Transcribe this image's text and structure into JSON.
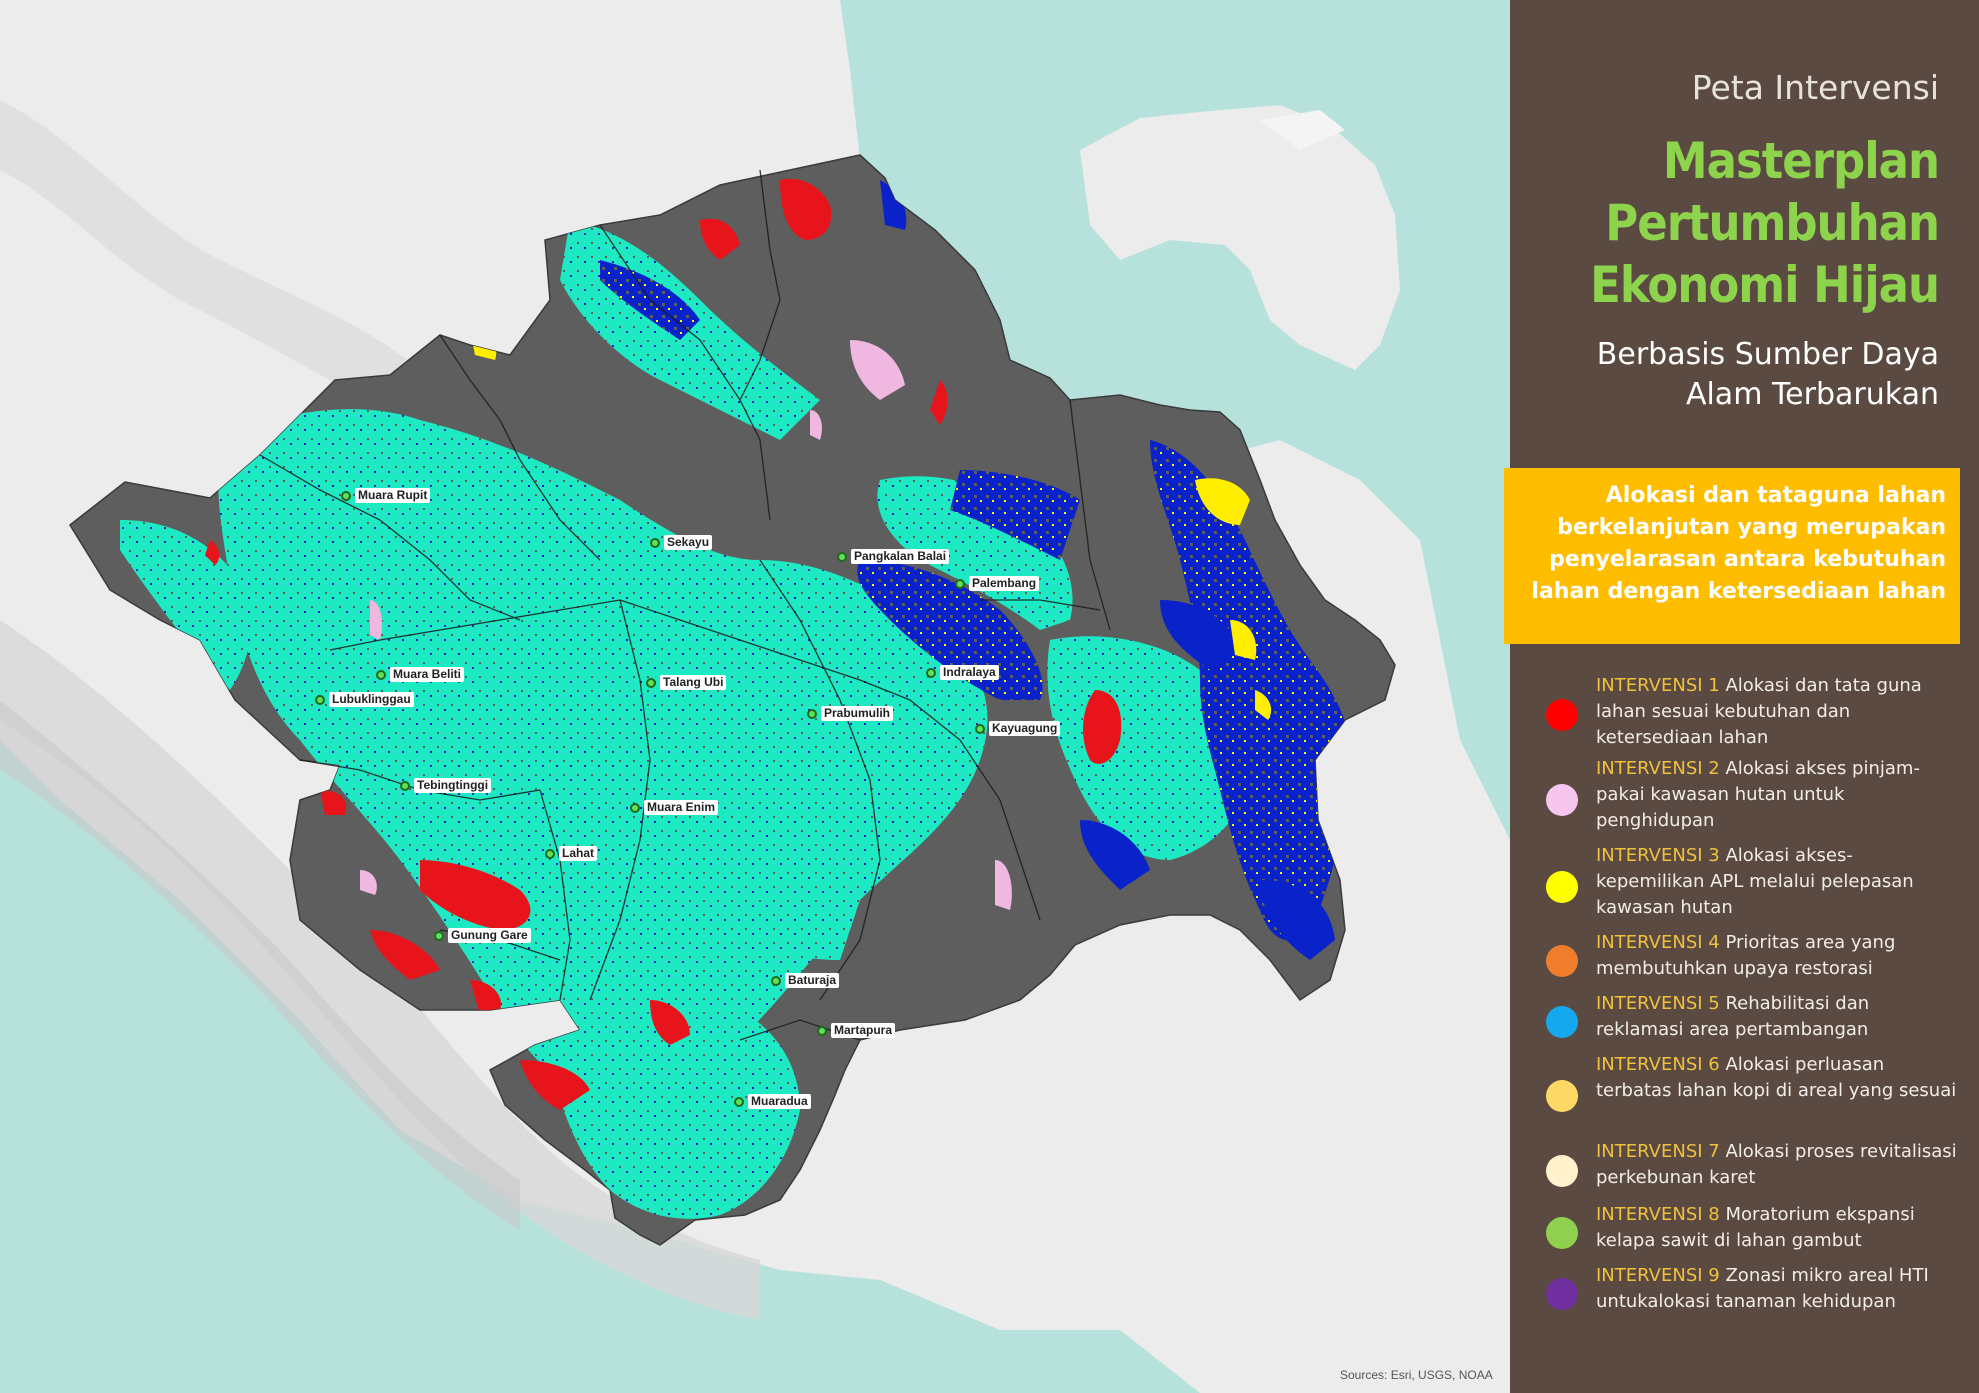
{
  "map": {
    "cities": [
      {
        "name": "Muara Rupit"
      },
      {
        "name": "Sekayu"
      },
      {
        "name": "Pangkalan Balai"
      },
      {
        "name": "Palembang"
      },
      {
        "name": "Muara Beliti"
      },
      {
        "name": "Lubuklinggau"
      },
      {
        "name": "Talang Ubi"
      },
      {
        "name": "Indralaya"
      },
      {
        "name": "Prabumulih"
      },
      {
        "name": "Kayuagung"
      },
      {
        "name": "Tebingtinggi"
      },
      {
        "name": "Muara Enim"
      },
      {
        "name": "Lahat"
      },
      {
        "name": "Gunung Gare"
      },
      {
        "name": "Baturaja"
      },
      {
        "name": "Martapura"
      },
      {
        "name": "Muaradua"
      }
    ],
    "attribution": "Sources: Esri, USGS, NOAA",
    "colors": {
      "sea": "#b7e2dc",
      "land": "#ececec",
      "base": "#5e5e5e",
      "cyan": "#1de9c3",
      "blue": "#0a22c9",
      "red": "#e8141c"
    }
  },
  "panel": {
    "subtitle": "Peta Intervensi",
    "title_lines": [
      "Masterplan",
      "Pertumbuhan",
      "Ekonomi Hijau"
    ],
    "subtitle2_lines": [
      "Berbasis Sumber Daya",
      "Alam Terbarukan"
    ],
    "callout_lines": [
      "Alokasi dan tataguna lahan",
      "berkelanjutan yang merupakan",
      "penyelarasan antara kebutuhan",
      "lahan dengan ketersediaan lahan"
    ]
  },
  "legend": [
    {
      "head": "INTERVENSI 1",
      "text": "Alokasi dan tata guna lahan sesuai kebutuhan dan ketersediaan lahan",
      "color": "#ff0000"
    },
    {
      "head": "INTERVENSI 2",
      "text": "Alokasi akses pinjam-pakai kawasan hutan untuk penghidupan",
      "color": "#f7c6ee"
    },
    {
      "head": "INTERVENSI 3",
      "text": "Alokasi akses-kepemilikan APL melalui pelepasan kawasan hutan",
      "color": "#ffff00"
    },
    {
      "head": "INTERVENSI 4",
      "text": "Prioritas area yang membutuhkan upaya restorasi",
      "color": "#ef7d2c"
    },
    {
      "head": "INTERVENSI 5",
      "text": "Rehabilitasi dan reklamasi area pertambangan",
      "color": "#16a8ef"
    },
    {
      "head": "INTERVENSI 6",
      "text": "Alokasi perluasan terbatas lahan kopi di areal yang sesuai",
      "color": "#ffd966"
    },
    {
      "head": "INTERVENSI 7",
      "text": "Alokasi proses revitalisasi perkebunan karet",
      "color": "#fff2cc"
    },
    {
      "head": "INTERVENSI 8",
      "text": "Moratorium ekspansi kelapa sawit di lahan gambut",
      "color": "#8fd14f"
    },
    {
      "head": "INTERVENSI 9",
      "text": "Zonasi mikro areal HTI untukalokasi tanaman kehidupan",
      "color": "#7030a0"
    }
  ]
}
